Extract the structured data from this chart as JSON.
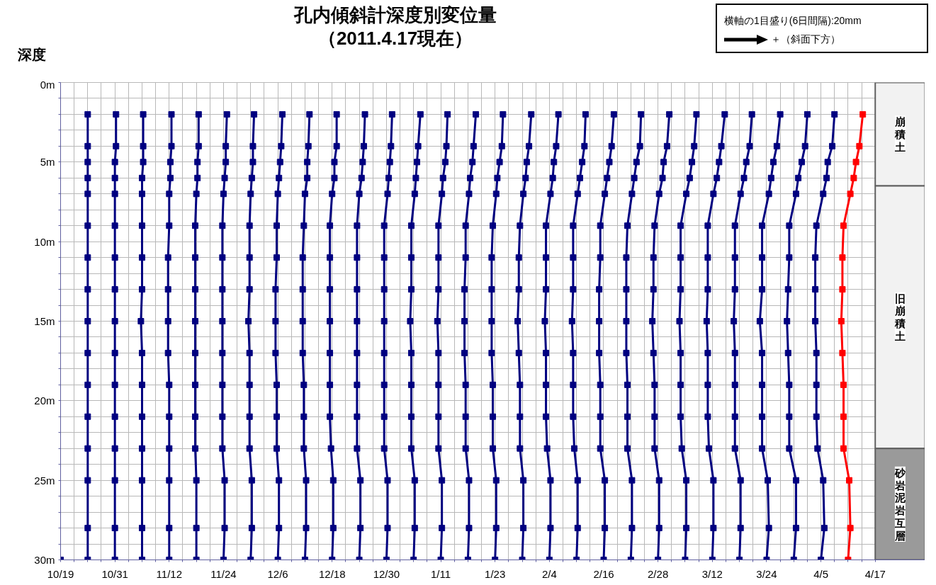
{
  "chart_data": {
    "type": "line",
    "title": "孔内傾斜計深度別変位量",
    "subtitle": "（2011.4.17現在）",
    "ylabel": "深度",
    "annotations": [
      "横軸の1目盛り(6日間隔):20mm",
      "＋（斜面下方）"
    ],
    "marker": "square",
    "grid": true,
    "xlim": [
      "2010-10-19",
      "2011-04-28"
    ],
    "ylim": [
      30,
      0
    ],
    "xticks": [
      {
        "value": "2010-10-19",
        "label": "10/19"
      },
      {
        "value": "2010-10-22",
        "label": null
      },
      {
        "value": "2010-10-25",
        "label": null
      },
      {
        "value": "2010-10-28",
        "label": null
      },
      {
        "value": "2010-10-31",
        "label": "10/31"
      },
      {
        "value": "2010-11-03",
        "label": null
      },
      {
        "value": "2010-11-06",
        "label": null
      },
      {
        "value": "2010-11-09",
        "label": null
      },
      {
        "value": "2010-11-12",
        "label": "11/12"
      },
      {
        "value": "2010-11-15",
        "label": null
      },
      {
        "value": "2010-11-18",
        "label": null
      },
      {
        "value": "2010-11-21",
        "label": null
      },
      {
        "value": "2010-11-24",
        "label": "11/24"
      },
      {
        "value": "2010-11-27",
        "label": null
      },
      {
        "value": "2010-11-30",
        "label": null
      },
      {
        "value": "2010-12-03",
        "label": null
      },
      {
        "value": "2010-12-06",
        "label": "12/6"
      },
      {
        "value": "2010-12-09",
        "label": null
      },
      {
        "value": "2010-12-12",
        "label": null
      },
      {
        "value": "2010-12-15",
        "label": null
      },
      {
        "value": "2010-12-18",
        "label": "12/18"
      },
      {
        "value": "2010-12-21",
        "label": null
      },
      {
        "value": "2010-12-24",
        "label": null
      },
      {
        "value": "2010-12-27",
        "label": null
      },
      {
        "value": "2010-12-30",
        "label": "12/30"
      },
      {
        "value": "2011-01-02",
        "label": null
      },
      {
        "value": "2011-01-05",
        "label": null
      },
      {
        "value": "2011-01-08",
        "label": null
      },
      {
        "value": "2011-01-11",
        "label": "1/11"
      },
      {
        "value": "2011-01-14",
        "label": null
      },
      {
        "value": "2011-01-17",
        "label": null
      },
      {
        "value": "2011-01-20",
        "label": null
      },
      {
        "value": "2011-01-23",
        "label": "1/23"
      },
      {
        "value": "2011-01-26",
        "label": null
      },
      {
        "value": "2011-01-29",
        "label": null
      },
      {
        "value": "2011-02-01",
        "label": null
      },
      {
        "value": "2011-02-04",
        "label": "2/4"
      },
      {
        "value": "2011-02-07",
        "label": null
      },
      {
        "value": "2011-02-10",
        "label": null
      },
      {
        "value": "2011-02-13",
        "label": null
      },
      {
        "value": "2011-02-16",
        "label": "2/16"
      },
      {
        "value": "2011-02-19",
        "label": null
      },
      {
        "value": "2011-02-22",
        "label": null
      },
      {
        "value": "2011-02-25",
        "label": null
      },
      {
        "value": "2011-02-28",
        "label": "2/28"
      },
      {
        "value": "2011-03-03",
        "label": null
      },
      {
        "value": "2011-03-06",
        "label": null
      },
      {
        "value": "2011-03-09",
        "label": null
      },
      {
        "value": "2011-03-12",
        "label": "3/12"
      },
      {
        "value": "2011-03-15",
        "label": null
      },
      {
        "value": "2011-03-18",
        "label": null
      },
      {
        "value": "2011-03-21",
        "label": null
      },
      {
        "value": "2011-03-24",
        "label": "3/24"
      },
      {
        "value": "2011-03-27",
        "label": null
      },
      {
        "value": "2011-03-30",
        "label": null
      },
      {
        "value": "2011-04-02",
        "label": null
      },
      {
        "value": "2011-04-05",
        "label": "4/5"
      },
      {
        "value": "2011-04-08",
        "label": null
      },
      {
        "value": "2011-04-11",
        "label": null
      },
      {
        "value": "2011-04-14",
        "label": null
      },
      {
        "value": "2011-04-17",
        "label": "4/17"
      }
    ],
    "yticks": [
      {
        "value": 0,
        "label": "0m"
      },
      {
        "value": 1,
        "label": null
      },
      {
        "value": 2,
        "label": null
      },
      {
        "value": 3,
        "label": null
      },
      {
        "value": 4,
        "label": null
      },
      {
        "value": 5,
        "label": "5m"
      },
      {
        "value": 6,
        "label": null
      },
      {
        "value": 7,
        "label": null
      },
      {
        "value": 8,
        "label": null
      },
      {
        "value": 9,
        "label": null
      },
      {
        "value": 10,
        "label": "10m"
      },
      {
        "value": 11,
        "label": null
      },
      {
        "value": 12,
        "label": null
      },
      {
        "value": 13,
        "label": null
      },
      {
        "value": 14,
        "label": null
      },
      {
        "value": 15,
        "label": "15m"
      },
      {
        "value": 16,
        "label": null
      },
      {
        "value": 17,
        "label": null
      },
      {
        "value": 18,
        "label": null
      },
      {
        "value": 19,
        "label": null
      },
      {
        "value": 20,
        "label": "20m"
      },
      {
        "value": 21,
        "label": null
      },
      {
        "value": 22,
        "label": null
      },
      {
        "value": 23,
        "label": null
      },
      {
        "value": 24,
        "label": null
      },
      {
        "value": 25,
        "label": "25m"
      },
      {
        "value": 26,
        "label": null
      },
      {
        "value": 27,
        "label": null
      },
      {
        "value": 28,
        "label": null
      },
      {
        "value": 29,
        "label": null
      },
      {
        "value": 30,
        "label": "30m"
      }
    ],
    "bands": [
      {
        "axis": "y",
        "from": 0,
        "to": 6.5,
        "label": "崩積土",
        "color": "#f2f2f2"
      },
      {
        "axis": "y",
        "from": 6.5,
        "to": 23,
        "label": "旧崩積土",
        "color": "#f2f2f2"
      },
      {
        "axis": "y",
        "from": 23,
        "to": 30,
        "label": "砂岩泥岩互層",
        "color": "#9a9a9a"
      }
    ],
    "series": [
      {
        "color": "#000080",
        "x": [
          "2010-10-19"
        ],
        "values": [
          30
        ]
      },
      {
        "color": "#000080",
        "x": [
          "2010-10-25",
          "2010-10-25",
          "2010-10-25",
          "2010-10-25",
          "2010-10-25",
          "2010-10-25",
          "2010-10-25",
          "2010-10-25",
          "2010-10-25",
          "2010-10-25",
          "2010-10-25",
          "2010-10-25",
          "2010-10-25",
          "2010-10-25",
          "2010-10-25",
          "2010-10-25"
        ],
        "values": [
          2,
          4,
          5,
          6,
          7,
          9,
          11,
          13,
          15,
          17,
          19,
          21,
          23,
          25,
          28,
          30
        ]
      },
      {
        "color": "#000080",
        "x": [
          "2010-10-31T06:00",
          "2010-10-31T06:00",
          "2010-10-31",
          "2010-10-31",
          "2010-10-31",
          "2010-10-31",
          "2010-10-31",
          "2010-10-31",
          "2010-10-31",
          "2010-10-31",
          "2010-10-31",
          "2010-10-31",
          "2010-10-31",
          "2010-10-31",
          "2010-10-31",
          "2010-10-31"
        ],
        "values": [
          2,
          4,
          5,
          6,
          7,
          9,
          11,
          13,
          15,
          17,
          19,
          21,
          23,
          25,
          28,
          30
        ]
      },
      {
        "color": "#000080",
        "x": [
          "2010-11-06T06:00",
          "2010-11-06T06:00",
          "2010-11-06T06:00",
          "2010-11-06",
          "2010-11-06",
          "2010-11-06",
          "2010-11-06",
          "2010-11-06",
          "2010-11-05T18:00",
          "2010-11-06",
          "2010-11-06",
          "2010-11-06",
          "2010-11-06",
          "2010-11-06",
          "2010-11-06",
          "2010-11-06"
        ],
        "values": [
          2,
          4,
          5,
          6,
          7,
          9,
          11,
          13,
          15,
          17,
          19,
          21,
          23,
          25,
          28,
          30
        ]
      },
      {
        "color": "#000080",
        "x": [
          "2010-11-12T12:00",
          "2010-11-12T12:00",
          "2010-11-12T06:00",
          "2010-11-12T06:00",
          "2010-11-12",
          "2010-11-12",
          "2010-11-11T18:00",
          "2010-11-11T18:00",
          "2010-11-11T18:00",
          "2010-11-11T18:00",
          "2010-11-12",
          "2010-11-12",
          "2010-11-12",
          "2010-11-12",
          "2010-11-12",
          "2010-11-12"
        ],
        "values": [
          2,
          4,
          5,
          6,
          7,
          9,
          11,
          13,
          15,
          17,
          19,
          21,
          23,
          25,
          28,
          30
        ]
      },
      {
        "color": "#000080",
        "x": [
          "2010-11-18T12:00",
          "2010-11-18T12:00",
          "2010-11-18T06:00",
          "2010-11-18T06:00",
          "2010-11-18",
          "2010-11-17T18:00",
          "2010-11-17T18:00",
          "2010-11-17T18:00",
          "2010-11-17T18:00",
          "2010-11-17T18:00",
          "2010-11-17T18:00",
          "2010-11-17T18:00",
          "2010-11-17T18:00",
          "2010-11-18",
          "2010-11-18",
          "2010-11-18"
        ],
        "values": [
          2,
          4,
          5,
          6,
          7,
          9,
          11,
          13,
          15,
          17,
          19,
          21,
          23,
          25,
          28,
          30
        ]
      },
      {
        "color": "#000080",
        "x": [
          "2010-11-24T18:00",
          "2010-11-24T12:00",
          "2010-11-24T12:00",
          "2010-11-24T06:00",
          "2010-11-24",
          "2010-11-23T18:00",
          "2010-11-23T18:00",
          "2010-11-23T18:00",
          "2010-11-23T18:00",
          "2010-11-23T18:00",
          "2010-11-23T18:00",
          "2010-11-23T18:00",
          "2010-11-23T18:00",
          "2010-11-24T06:00",
          "2010-11-24T06:00",
          "2010-11-24"
        ],
        "values": [
          2,
          4,
          5,
          6,
          7,
          9,
          11,
          13,
          15,
          17,
          19,
          21,
          23,
          25,
          28,
          30
        ]
      },
      {
        "color": "#000080",
        "x": [
          "2010-11-30T18:00",
          "2010-11-30T12:00",
          "2010-11-30T12:00",
          "2010-11-30T06:00",
          "2010-11-30",
          "2010-11-29T18:00",
          "2010-11-29T18:00",
          "2010-11-29T18:00",
          "2010-11-29T12:00",
          "2010-11-29T18:00",
          "2010-11-29T18:00",
          "2010-11-29T18:00",
          "2010-11-29T18:00",
          "2010-11-30T06:00",
          "2010-11-30T06:00",
          "2010-11-30"
        ],
        "values": [
          2,
          4,
          5,
          6,
          7,
          9,
          11,
          13,
          15,
          17,
          19,
          21,
          23,
          25,
          28,
          30
        ]
      },
      {
        "color": "#000080",
        "x": [
          "2010-12-07",
          "2010-12-06T18:00",
          "2010-12-06T12:00",
          "2010-12-06T06:00",
          "2010-12-06",
          "2010-12-05T18:00",
          "2010-12-05T18:00",
          "2010-12-05T12:00",
          "2010-12-05T12:00",
          "2010-12-05T12:00",
          "2010-12-05T18:00",
          "2010-12-05T18:00",
          "2010-12-05T18:00",
          "2010-12-06T06:00",
          "2010-12-06T06:00",
          "2010-12-06"
        ],
        "values": [
          2,
          4,
          5,
          6,
          7,
          9,
          11,
          13,
          15,
          17,
          19,
          21,
          23,
          25,
          28,
          30
        ]
      },
      {
        "color": "#000080",
        "x": [
          "2010-12-13",
          "2010-12-12T18:00",
          "2010-12-12T12:00",
          "2010-12-12T12:00",
          "2010-12-12",
          "2010-12-11T18:00",
          "2010-12-11T12:00",
          "2010-12-11T12:00",
          "2010-12-11T12:00",
          "2010-12-11T12:00",
          "2010-12-11T18:00",
          "2010-12-11T18:00",
          "2010-12-11T18:00",
          "2010-12-12T06:00",
          "2010-12-12T06:00",
          "2010-12-12"
        ],
        "values": [
          2,
          4,
          5,
          6,
          7,
          9,
          11,
          13,
          15,
          17,
          19,
          21,
          23,
          25,
          28,
          30
        ]
      },
      {
        "color": "#000080",
        "x": [
          "2010-12-19",
          "2010-12-19",
          "2010-12-18T12:00",
          "2010-12-18T12:00",
          "2010-12-18",
          "2010-12-17T12:00",
          "2010-12-17T12:00",
          "2010-12-17T12:00",
          "2010-12-17T12:00",
          "2010-12-17T12:00",
          "2010-12-17T12:00",
          "2010-12-17T12:00",
          "2010-12-17T18:00",
          "2010-12-18T06:00",
          "2010-12-18T06:00",
          "2010-12-18"
        ],
        "values": [
          2,
          4,
          5,
          6,
          7,
          9,
          11,
          13,
          15,
          17,
          19,
          21,
          23,
          25,
          28,
          30
        ]
      },
      {
        "color": "#000080",
        "x": [
          "2010-12-25T06:00",
          "2010-12-25",
          "2010-12-24T18:00",
          "2010-12-24T12:00",
          "2010-12-24",
          "2010-12-23T12:00",
          "2010-12-23T12:00",
          "2010-12-23T12:00",
          "2010-12-23T12:00",
          "2010-12-23T12:00",
          "2010-12-23T12:00",
          "2010-12-23T12:00",
          "2010-12-23T12:00",
          "2010-12-24T06:00",
          "2010-12-24T06:00",
          "2010-12-24"
        ],
        "values": [
          2,
          4,
          5,
          6,
          7,
          9,
          11,
          13,
          15,
          17,
          19,
          21,
          23,
          25,
          28,
          30
        ]
      },
      {
        "color": "#000080",
        "x": [
          "2010-12-31T06:00",
          "2010-12-31",
          "2010-12-30T18:00",
          "2010-12-30T12:00",
          "2010-12-30T06:00",
          "2010-12-29T12:00",
          "2010-12-29T12:00",
          "2010-12-29T12:00",
          "2010-12-29T12:00",
          "2010-12-29T12:00",
          "2010-12-29T12:00",
          "2010-12-29T12:00",
          "2010-12-29T12:00",
          "2010-12-30T06:00",
          "2010-12-30T06:00",
          "2010-12-30"
        ],
        "values": [
          2,
          4,
          5,
          6,
          7,
          9,
          11,
          13,
          15,
          17,
          19,
          21,
          23,
          25,
          28,
          30
        ]
      },
      {
        "color": "#000080",
        "x": [
          "2011-01-06T12:00",
          "2011-01-06",
          "2011-01-05T18:00",
          "2011-01-05T12:00",
          "2011-01-05T06:00",
          "2011-01-04T12:00",
          "2011-01-04T12:00",
          "2011-01-04T12:00",
          "2011-01-04T06:00",
          "2011-01-04T12:00",
          "2011-01-04T12:00",
          "2011-01-04T12:00",
          "2011-01-04T12:00",
          "2011-01-05T06:00",
          "2011-01-05T06:00",
          "2011-01-05"
        ],
        "values": [
          2,
          4,
          5,
          6,
          7,
          9,
          11,
          13,
          15,
          17,
          19,
          21,
          23,
          25,
          28,
          30
        ]
      },
      {
        "color": "#000080",
        "x": [
          "2011-01-12T12:00",
          "2011-01-12T06:00",
          "2011-01-12",
          "2011-01-11T12:00",
          "2011-01-11T06:00",
          "2011-01-10T12:00",
          "2011-01-10T12:00",
          "2011-01-10T12:00",
          "2011-01-10T06:00",
          "2011-01-10T12:00",
          "2011-01-10T12:00",
          "2011-01-10T12:00",
          "2011-01-10T12:00",
          "2011-01-11T06:00",
          "2011-01-11T06:00",
          "2011-01-11"
        ],
        "values": [
          2,
          4,
          5,
          6,
          7,
          9,
          11,
          13,
          15,
          17,
          19,
          21,
          23,
          25,
          28,
          30
        ]
      },
      {
        "color": "#000080",
        "x": [
          "2011-01-18T18:00",
          "2011-01-18T06:00",
          "2011-01-18",
          "2011-01-17T12:00",
          "2011-01-17T06:00",
          "2011-01-16T12:00",
          "2011-01-16T12:00",
          "2011-01-16T06:00",
          "2011-01-16T06:00",
          "2011-01-16T06:00",
          "2011-01-16T12:00",
          "2011-01-16T12:00",
          "2011-01-16T12:00",
          "2011-01-17T06:00",
          "2011-01-17T06:00",
          "2011-01-17"
        ],
        "values": [
          2,
          4,
          5,
          6,
          7,
          9,
          11,
          13,
          15,
          17,
          19,
          21,
          23,
          25,
          28,
          30
        ]
      },
      {
        "color": "#000080",
        "x": [
          "2011-01-24T18:00",
          "2011-01-24T12:00",
          "2011-01-24",
          "2011-01-23T12:00",
          "2011-01-23T06:00",
          "2011-01-22T12:00",
          "2011-01-22T06:00",
          "2011-01-22T06:00",
          "2011-01-22T06:00",
          "2011-01-22T06:00",
          "2011-01-22T12:00",
          "2011-01-22T12:00",
          "2011-01-22T12:00",
          "2011-01-23T06:00",
          "2011-01-23T06:00",
          "2011-01-23"
        ],
        "values": [
          2,
          4,
          5,
          6,
          7,
          9,
          11,
          13,
          15,
          17,
          19,
          21,
          23,
          25,
          28,
          30
        ]
      },
      {
        "color": "#000080",
        "x": [
          "2011-01-31",
          "2011-01-30T12:00",
          "2011-01-30",
          "2011-01-29T18:00",
          "2011-01-29T06:00",
          "2011-01-28T12:00",
          "2011-01-28T06:00",
          "2011-01-28T06:00",
          "2011-01-28",
          "2011-01-28T06:00",
          "2011-01-28T12:00",
          "2011-01-28T12:00",
          "2011-01-28T12:00",
          "2011-01-29T06:00",
          "2011-01-29T06:00",
          "2011-01-29"
        ],
        "values": [
          2,
          4,
          5,
          6,
          7,
          9,
          11,
          13,
          15,
          17,
          19,
          21,
          23,
          25,
          28,
          30
        ]
      },
      {
        "color": "#000080",
        "x": [
          "2011-02-06",
          "2011-02-05T12:00",
          "2011-02-05",
          "2011-02-04T18:00",
          "2011-02-04T06:00",
          "2011-02-03T06:00",
          "2011-02-03T06:00",
          "2011-02-03T06:00",
          "2011-02-03",
          "2011-02-03T06:00",
          "2011-02-03T06:00",
          "2011-02-03T06:00",
          "2011-02-03T12:00",
          "2011-02-04T06:00",
          "2011-02-04T06:00",
          "2011-02-04"
        ],
        "values": [
          2,
          4,
          5,
          6,
          7,
          9,
          11,
          13,
          15,
          17,
          19,
          21,
          23,
          25,
          28,
          30
        ]
      },
      {
        "color": "#000080",
        "x": [
          "2011-02-12",
          "2011-02-11T18:00",
          "2011-02-11T06:00",
          "2011-02-10T18:00",
          "2011-02-10T06:00",
          "2011-02-09T06:00",
          "2011-02-09T06:00",
          "2011-02-09T06:00",
          "2011-02-09",
          "2011-02-09T06:00",
          "2011-02-09T06:00",
          "2011-02-09T06:00",
          "2011-02-09T12:00",
          "2011-02-10T06:00",
          "2011-02-10T06:00",
          "2011-02-10"
        ],
        "values": [
          2,
          4,
          5,
          6,
          7,
          9,
          11,
          13,
          15,
          17,
          19,
          21,
          23,
          25,
          28,
          30
        ]
      },
      {
        "color": "#000080",
        "x": [
          "2011-02-18T06:00",
          "2011-02-17T18:00",
          "2011-02-17T06:00",
          "2011-02-16T18:00",
          "2011-02-16T06:00",
          "2011-02-15T06:00",
          "2011-02-15T06:00",
          "2011-02-15",
          "2011-02-15",
          "2011-02-15",
          "2011-02-15T06:00",
          "2011-02-15T06:00",
          "2011-02-15T06:00",
          "2011-02-16T06:00",
          "2011-02-16T06:00",
          "2011-02-16"
        ],
        "values": [
          2,
          4,
          5,
          6,
          7,
          9,
          11,
          13,
          15,
          17,
          19,
          21,
          23,
          25,
          28,
          30
        ]
      },
      {
        "color": "#000080",
        "x": [
          "2011-02-24T06:00",
          "2011-02-24",
          "2011-02-23T06:00",
          "2011-02-22T18:00",
          "2011-02-22T06:00",
          "2011-02-21T06:00",
          "2011-02-21",
          "2011-02-21",
          "2011-02-21",
          "2011-02-21",
          "2011-02-21T06:00",
          "2011-02-21T06:00",
          "2011-02-21T06:00",
          "2011-02-22T06:00",
          "2011-02-22T06:00",
          "2011-02-22"
        ],
        "values": [
          2,
          4,
          5,
          6,
          7,
          9,
          11,
          13,
          15,
          17,
          19,
          21,
          23,
          25,
          28,
          30
        ]
      },
      {
        "color": "#000080",
        "x": [
          "2011-03-02T12:00",
          "2011-03-02",
          "2011-03-01T06:00",
          "2011-03-01",
          "2011-02-28T06:00",
          "2011-02-27T06:00",
          "2011-02-27",
          "2011-02-27",
          "2011-02-26T18:00",
          "2011-02-27",
          "2011-02-27T06:00",
          "2011-02-27T06:00",
          "2011-02-27T06:00",
          "2011-02-28T06:00",
          "2011-02-28T06:00",
          "2011-02-28"
        ],
        "values": [
          2,
          4,
          5,
          6,
          7,
          9,
          11,
          13,
          15,
          17,
          19,
          21,
          23,
          25,
          28,
          30
        ]
      },
      {
        "color": "#000080",
        "x": [
          "2011-03-08T12:00",
          "2011-03-08",
          "2011-03-07T12:00",
          "2011-03-07",
          "2011-03-06T06:00",
          "2011-03-05",
          "2011-03-05",
          "2011-03-05",
          "2011-03-04T18:00",
          "2011-03-05",
          "2011-03-05",
          "2011-03-05",
          "2011-03-05T06:00",
          "2011-03-06T06:00",
          "2011-03-06T06:00",
          "2011-03-06"
        ],
        "values": [
          2,
          4,
          5,
          6,
          7,
          9,
          11,
          13,
          15,
          17,
          19,
          21,
          23,
          25,
          28,
          30
        ]
      },
      {
        "color": "#000080",
        "x": [
          "2011-03-14T18:00",
          "2011-03-14",
          "2011-03-13T12:00",
          "2011-03-13",
          "2011-03-12T06:00",
          "2011-03-11",
          "2011-03-11",
          "2011-03-11",
          "2011-03-10T18:00",
          "2011-03-11",
          "2011-03-11",
          "2011-03-11",
          "2011-03-11T06:00",
          "2011-03-12T06:00",
          "2011-03-12T06:00",
          "2011-03-12"
        ],
        "values": [
          2,
          4,
          5,
          6,
          7,
          9,
          11,
          13,
          15,
          17,
          19,
          21,
          23,
          25,
          28,
          30
        ]
      },
      {
        "color": "#000080",
        "x": [
          "2011-03-20T18:00",
          "2011-03-20T06:00",
          "2011-03-19T12:00",
          "2011-03-19",
          "2011-03-18T06:00",
          "2011-03-17",
          "2011-03-17",
          "2011-03-17",
          "2011-03-16T18:00",
          "2011-03-17",
          "2011-03-17",
          "2011-03-17",
          "2011-03-17",
          "2011-03-18T06:00",
          "2011-03-18T06:00",
          "2011-03-18"
        ],
        "values": [
          2,
          4,
          5,
          6,
          7,
          9,
          11,
          13,
          15,
          17,
          19,
          21,
          23,
          25,
          28,
          30
        ]
      },
      {
        "color": "#000080",
        "x": [
          "2011-03-27",
          "2011-03-26T06:00",
          "2011-03-25T12:00",
          "2011-03-25",
          "2011-03-24T12:00",
          "2011-03-23",
          "2011-03-23",
          "2011-03-23",
          "2011-03-22T12:00",
          "2011-03-23",
          "2011-03-23",
          "2011-03-23",
          "2011-03-23",
          "2011-03-24T06:00",
          "2011-03-24T12:00",
          "2011-03-24"
        ],
        "values": [
          2,
          4,
          5,
          6,
          7,
          9,
          11,
          13,
          15,
          17,
          19,
          21,
          23,
          25,
          28,
          30
        ]
      },
      {
        "color": "#000080",
        "x": [
          "2011-04-02",
          "2011-04-01T12:00",
          "2011-03-31T18:00",
          "2011-03-31",
          "2011-03-30T12:00",
          "2011-03-29",
          "2011-03-29",
          "2011-03-28T18:00",
          "2011-03-28T12:00",
          "2011-03-28T18:00",
          "2011-03-29",
          "2011-03-29",
          "2011-03-29",
          "2011-03-30T12:00",
          "2011-03-30T12:00",
          "2011-03-30"
        ],
        "values": [
          2,
          4,
          5,
          6,
          7,
          9,
          11,
          13,
          15,
          17,
          19,
          21,
          23,
          25,
          28,
          30
        ]
      },
      {
        "color": "#000080",
        "x": [
          "2011-04-08",
          "2011-04-07T12:00",
          "2011-04-06T12:00",
          "2011-04-06T06:00",
          "2011-04-05T12:00",
          "2011-04-04",
          "2011-04-03T18:00",
          "2011-04-03T18:00",
          "2011-04-03T18:00",
          "2011-04-04",
          "2011-04-04",
          "2011-04-04",
          "2011-04-04T06:00",
          "2011-04-05T12:00",
          "2011-04-05T18:00",
          "2011-04-05"
        ],
        "values": [
          2,
          4,
          5,
          6,
          7,
          9,
          11,
          13,
          15,
          17,
          19,
          21,
          23,
          25,
          28,
          30
        ]
      },
      {
        "color": "#ff0000",
        "x": [
          "2011-04-14T06:00",
          "2011-04-13T12:00",
          "2011-04-12T18:00",
          "2011-04-12T06:00",
          "2011-04-11T12:00",
          "2011-04-10",
          "2011-04-09T18:00",
          "2011-04-09T18:00",
          "2011-04-09T12:00",
          "2011-04-09T18:00",
          "2011-04-10",
          "2011-04-10",
          "2011-04-10",
          "2011-04-11T06:00",
          "2011-04-11T12:00",
          "2011-04-11"
        ],
        "values": [
          2,
          4,
          5,
          6,
          7,
          9,
          11,
          13,
          15,
          17,
          19,
          21,
          23,
          25,
          28,
          30
        ]
      }
    ]
  }
}
